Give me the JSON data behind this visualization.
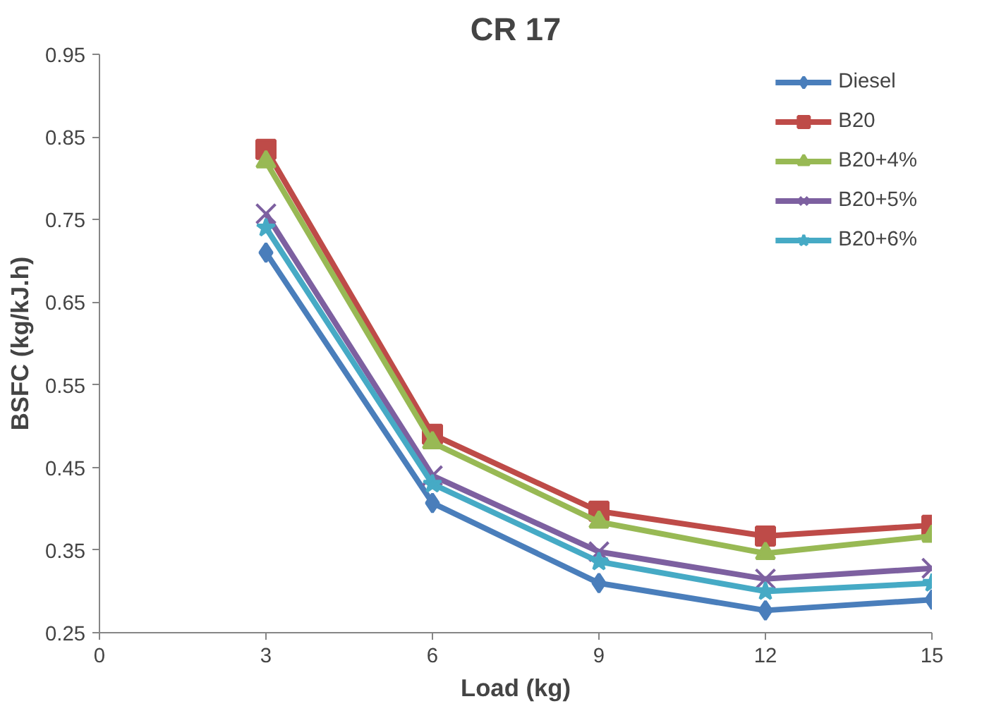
{
  "chart_data": {
    "type": "line",
    "title": "CR 17",
    "xlabel": "Load (kg)",
    "ylabel": "BSFC (kg/kJ.h)",
    "x": [
      3,
      6,
      9,
      12,
      15
    ],
    "xlim": [
      0,
      15
    ],
    "xticks": [
      0,
      3,
      6,
      9,
      12,
      15
    ],
    "ylim": [
      0.25,
      0.95
    ],
    "yticks": [
      0.25,
      0.35,
      0.45,
      0.55,
      0.65,
      0.75,
      0.85,
      0.95
    ],
    "grid": false,
    "legend": "top right",
    "series": [
      {
        "name": "Diesel",
        "color": "#4a7ebb",
        "marker": "diamond",
        "values": [
          0.71,
          0.407,
          0.31,
          0.277,
          0.29
        ]
      },
      {
        "name": "B20",
        "color": "#be4b48",
        "marker": "square",
        "values": [
          0.835,
          0.49,
          0.397,
          0.367,
          0.38
        ]
      },
      {
        "name": "B20+4%",
        "color": "#98b954",
        "marker": "triangle",
        "values": [
          0.82,
          0.48,
          0.384,
          0.346,
          0.367
        ]
      },
      {
        "name": "B20+5%",
        "color": "#7d60a0",
        "marker": "cross",
        "values": [
          0.757,
          0.44,
          0.348,
          0.315,
          0.328
        ]
      },
      {
        "name": "B20+6%",
        "color": "#46aac5",
        "marker": "star",
        "values": [
          0.74,
          0.43,
          0.336,
          0.3,
          0.31
        ]
      }
    ]
  }
}
